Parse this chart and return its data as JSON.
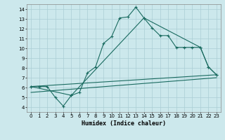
{
  "xlabel": "Humidex (Indice chaleur)",
  "ylabel": "",
  "bg_color": "#cce8ec",
  "grid_color": "#aacdd4",
  "line_color": "#1a6b60",
  "xlim": [
    -0.5,
    23.5
  ],
  "ylim": [
    3.5,
    14.5
  ],
  "xticks": [
    0,
    1,
    2,
    3,
    4,
    5,
    6,
    7,
    8,
    9,
    10,
    11,
    12,
    13,
    14,
    15,
    16,
    17,
    18,
    19,
    20,
    21,
    22,
    23
  ],
  "yticks": [
    4,
    5,
    6,
    7,
    8,
    9,
    10,
    11,
    12,
    13,
    14
  ],
  "line1_x": [
    0,
    1,
    2,
    3,
    4,
    5,
    6,
    7,
    8,
    9,
    10,
    11,
    12,
    13,
    14,
    15,
    16,
    17,
    18,
    19,
    20,
    21,
    22,
    23
  ],
  "line1_y": [
    6.1,
    6.1,
    6.1,
    5.0,
    4.1,
    5.2,
    5.5,
    7.5,
    8.1,
    10.5,
    11.2,
    13.1,
    13.2,
    14.2,
    13.1,
    12.1,
    11.3,
    11.3,
    10.1,
    10.1,
    10.1,
    10.1,
    8.1,
    7.3
  ],
  "line2_x": [
    0,
    5,
    14,
    21,
    22,
    23
  ],
  "line2_y": [
    6.1,
    5.2,
    13.1,
    10.1,
    8.1,
    7.3
  ],
  "line3_x": [
    0,
    23
  ],
  "line3_y": [
    6.1,
    7.3
  ],
  "line4_x": [
    0,
    23
  ],
  "line4_y": [
    5.5,
    7.0
  ]
}
